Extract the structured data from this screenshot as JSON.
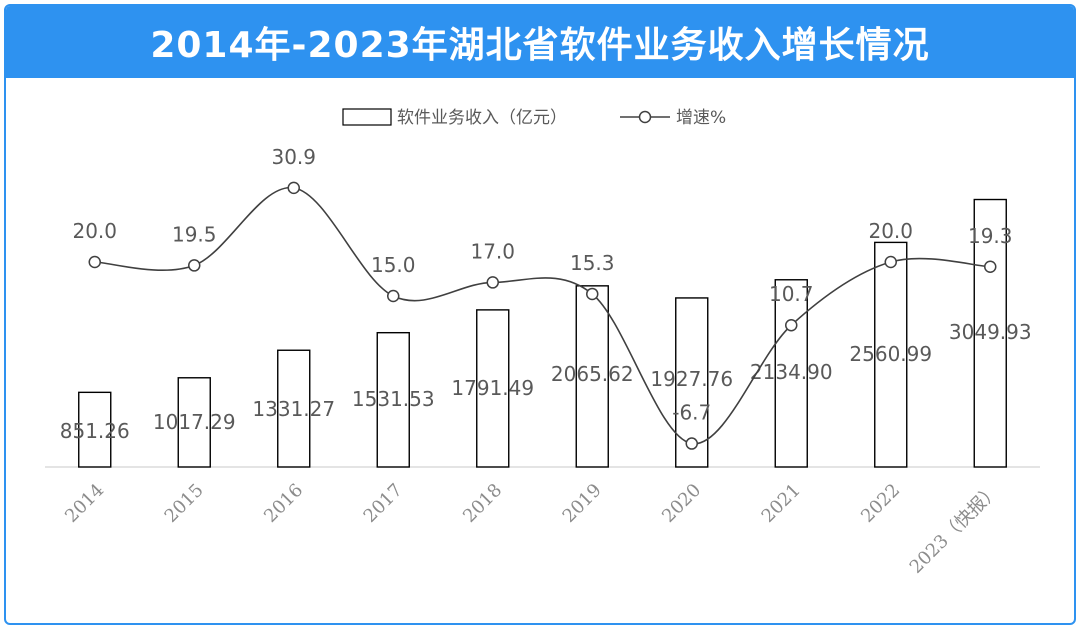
{
  "title": "2014年-2023年湖北省软件业务收入增长情况",
  "chart_data": {
    "type": "bar+line",
    "categories": [
      "2014",
      "2015",
      "2016",
      "2017",
      "2018",
      "2019",
      "2020",
      "2021",
      "2022",
      "2023（快报）"
    ],
    "series": [
      {
        "name": "软件业务收入（亿元）",
        "type": "bar",
        "values": [
          851.26,
          1017.29,
          1331.27,
          1531.53,
          1791.49,
          2065.62,
          1927.76,
          2134.9,
          2560.99,
          3049.93
        ],
        "labels": [
          "851.26",
          "1017.29",
          "1331.27",
          "1531.53",
          "1791.49",
          "2065.62",
          "1927.76",
          "2134.90",
          "2560.99",
          "3049.93"
        ]
      },
      {
        "name": "增速%",
        "type": "line",
        "values": [
          20.0,
          19.5,
          30.9,
          15.0,
          17.0,
          15.3,
          -6.7,
          10.7,
          20.0,
          19.3
        ],
        "labels": [
          "20.0",
          "19.5",
          "30.9",
          "15.0",
          "17.0",
          "15.3",
          "-6.7",
          "10.7",
          "20.0",
          "19.3"
        ]
      }
    ],
    "legend_position": "top-center",
    "grid": false,
    "colors": {
      "accent": "#2e92f0",
      "bar_edge": "#000000",
      "bar_fill": "#ffffff",
      "line": "#404040",
      "text": "#595959"
    }
  }
}
